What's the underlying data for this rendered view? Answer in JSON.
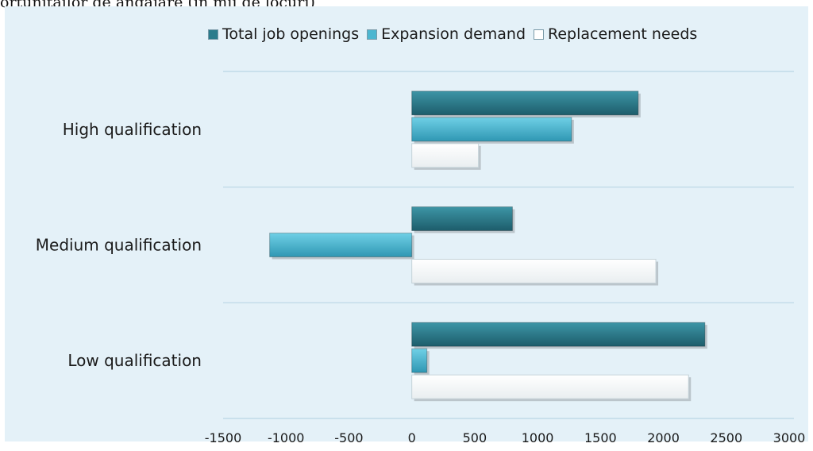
{
  "caption": "ortunitailor de angajare (in mii de locuri)",
  "colors": {
    "total": "#2b7c8c",
    "expansion": "#4cb6d0",
    "replacement": "#ffffff",
    "plot_bg": "#e4f1f8",
    "grid": "#b9d7e5"
  },
  "chart_data": {
    "type": "bar",
    "orientation": "horizontal",
    "categories": [
      "High qualification",
      "Medium qualification",
      "Low qualification"
    ],
    "series": [
      {
        "name": "Total job openings",
        "values": [
          1800,
          800,
          2330
        ]
      },
      {
        "name": "Expansion demand",
        "values": [
          1270,
          -1130,
          120
        ]
      },
      {
        "name": "Replacement needs",
        "values": [
          530,
          1940,
          2200
        ]
      }
    ],
    "xlim": [
      -1500,
      3000
    ],
    "xticks": [
      "-1500",
      "-1000",
      "-500",
      "0",
      "500",
      "1000",
      "1500",
      "2000",
      "2500",
      "3000"
    ],
    "title": "",
    "xlabel": "",
    "ylabel": "",
    "legend_position": "top",
    "grid": "horizontal"
  }
}
